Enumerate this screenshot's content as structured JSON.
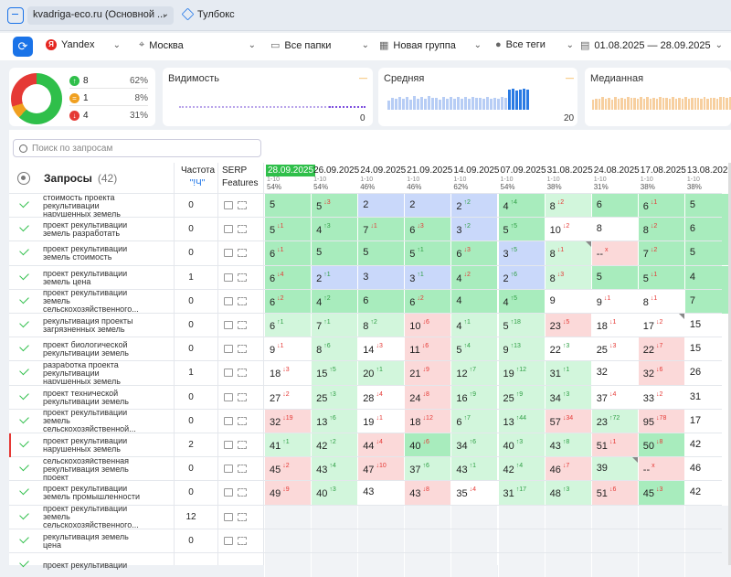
{
  "topbar": {
    "project": "kvadriga-eco.ru (Основной ...",
    "toolbox": "Тулбокс"
  },
  "filters": {
    "engine": "Yandex",
    "region": "Москва",
    "folders": "Все папки",
    "group": "Новая группа",
    "tags": "Все теги",
    "dates": "01.08.2025 — 28.09.2025"
  },
  "summary": {
    "up": {
      "value": "8",
      "pct": "62%"
    },
    "same": {
      "value": "1",
      "pct": "8%"
    },
    "down": {
      "value": "4",
      "pct": "31%"
    }
  },
  "metrics": {
    "visibility": {
      "title": "Видимость",
      "value": "0",
      "dash": "—"
    },
    "average": {
      "title": "Средняя",
      "value": "20",
      "dash": "—",
      "bars": [
        40,
        55,
        48,
        60,
        52,
        58,
        45,
        62,
        50,
        57,
        49,
        61,
        53,
        56,
        47,
        60,
        52,
        58,
        51,
        59,
        50,
        57,
        48,
        60,
        54,
        56,
        49,
        58,
        52,
        55,
        50,
        57,
        53,
        90,
        95,
        88,
        92,
        94,
        90
      ]
    },
    "median": {
      "title": "Медианная",
      "dash": "—",
      "bars": [
        45,
        52,
        48,
        58,
        50,
        55,
        47,
        60,
        51,
        56,
        49,
        59,
        53,
        55,
        48,
        57,
        52,
        58,
        50,
        56,
        49,
        57,
        54,
        55,
        50,
        58,
        52,
        56,
        49,
        57,
        51,
        55,
        53,
        56,
        48,
        58,
        52,
        54,
        55,
        50,
        60,
        58,
        55,
        57
      ]
    }
  },
  "search": {
    "placeholder": "Поиск по запросам"
  },
  "table": {
    "header": {
      "queries": "Запросы",
      "count": "(42)",
      "freq": "Частота",
      "freq_q": "\"!Ч\"",
      "serp1": "SERP",
      "serp2": "Features"
    },
    "dates": [
      {
        "d": "28.09.2025",
        "r": "1-10",
        "p": "54%"
      },
      {
        "d": "26.09.2025",
        "r": "1-10",
        "p": "54%"
      },
      {
        "d": "24.09.2025",
        "r": "1-10",
        "p": "46%"
      },
      {
        "d": "21.09.2025",
        "r": "1-10",
        "p": "46%"
      },
      {
        "d": "14.09.2025",
        "r": "1-10",
        "p": "62%"
      },
      {
        "d": "07.09.2025",
        "r": "1-10",
        "p": "54%"
      },
      {
        "d": "31.08.2025",
        "r": "1-10",
        "p": "38%"
      },
      {
        "d": "24.08.2025",
        "r": "1-10",
        "p": "31%"
      },
      {
        "d": "17.08.2025",
        "r": "1-10",
        "p": "38%"
      },
      {
        "d": "13.08.2025",
        "r": "1-10",
        "p": "38%"
      }
    ],
    "rows": [
      {
        "q": "стоимость проекта рекультивации нарушенных земель",
        "f": "0",
        "c": [
          [
            "5",
            "",
            ""
          ],
          [
            "5",
            "3",
            "dn"
          ],
          [
            "2",
            "",
            ""
          ],
          [
            "2",
            "",
            ""
          ],
          [
            "2",
            "2",
            "up"
          ],
          [
            "4",
            "4",
            "up"
          ],
          [
            "8",
            "2",
            "dn"
          ],
          [
            "6",
            "",
            ""
          ],
          [
            "6",
            "1",
            "dn"
          ],
          [
            "5",
            "",
            ""
          ]
        ]
      },
      {
        "q": "проект рекультивации земель разработать",
        "f": "0",
        "c": [
          [
            "5",
            "1",
            "dn"
          ],
          [
            "4",
            "3",
            "up"
          ],
          [
            "7",
            "1",
            "dn"
          ],
          [
            "6",
            "3",
            "dn"
          ],
          [
            "3",
            "2",
            "up"
          ],
          [
            "5",
            "5",
            "up"
          ],
          [
            "10",
            "2",
            "dn"
          ],
          [
            "8",
            "",
            ""
          ],
          [
            "8",
            "2",
            "dn"
          ],
          [
            "6",
            "",
            ""
          ]
        ]
      },
      {
        "q": "проект рекультивации земель стоимость",
        "f": "0",
        "c": [
          [
            "6",
            "1",
            "dn"
          ],
          [
            "5",
            "",
            ""
          ],
          [
            "5",
            "",
            ""
          ],
          [
            "5",
            "1",
            "up"
          ],
          [
            "6",
            "3",
            "dn"
          ],
          [
            "3",
            "5",
            "up"
          ],
          [
            "8",
            "1",
            "dn"
          ],
          [
            "--",
            "x",
            "dn"
          ],
          [
            "7",
            "2",
            "dn"
          ],
          [
            "5",
            "",
            ""
          ]
        ]
      },
      {
        "q": "проект рекультивации земель цена",
        "f": "1",
        "c": [
          [
            "6",
            "4",
            "dn"
          ],
          [
            "2",
            "1",
            "up"
          ],
          [
            "3",
            "",
            ""
          ],
          [
            "3",
            "1",
            "up"
          ],
          [
            "4",
            "2",
            "dn"
          ],
          [
            "2",
            "6",
            "up"
          ],
          [
            "8",
            "3",
            "dn"
          ],
          [
            "5",
            "",
            ""
          ],
          [
            "5",
            "1",
            "dn"
          ],
          [
            "4",
            "",
            ""
          ]
        ]
      },
      {
        "q": "проект рекультивации земель сельскохозяйственного...",
        "f": "0",
        "c": [
          [
            "6",
            "2",
            "dn"
          ],
          [
            "4",
            "2",
            "up"
          ],
          [
            "6",
            "",
            ""
          ],
          [
            "6",
            "2",
            "dn"
          ],
          [
            "4",
            "",
            ""
          ],
          [
            "4",
            "5",
            "up"
          ],
          [
            "9",
            "",
            ""
          ],
          [
            "9",
            "1",
            "dn"
          ],
          [
            "8",
            "1",
            "dn"
          ],
          [
            "7",
            "",
            ""
          ]
        ]
      },
      {
        "q": "рекультивация проекты загрязненных земель",
        "f": "0",
        "c": [
          [
            "6",
            "1",
            "up"
          ],
          [
            "7",
            "1",
            "up"
          ],
          [
            "8",
            "2",
            "up"
          ],
          [
            "10",
            "6",
            "dn"
          ],
          [
            "4",
            "1",
            "up"
          ],
          [
            "5",
            "18",
            "up"
          ],
          [
            "23",
            "5",
            "dn"
          ],
          [
            "18",
            "1",
            "dn"
          ],
          [
            "17",
            "2",
            "dn"
          ],
          [
            "15",
            "",
            ""
          ]
        ]
      },
      {
        "q": "проект биологической рекультивации земель",
        "f": "0",
        "c": [
          [
            "9",
            "1",
            "dn"
          ],
          [
            "8",
            "6",
            "up"
          ],
          [
            "14",
            "3",
            "dn"
          ],
          [
            "11",
            "6",
            "dn"
          ],
          [
            "5",
            "4",
            "up"
          ],
          [
            "9",
            "13",
            "up"
          ],
          [
            "22",
            "3",
            "up"
          ],
          [
            "25",
            "3",
            "dn"
          ],
          [
            "22",
            "7",
            "dn"
          ],
          [
            "15",
            "",
            ""
          ]
        ]
      },
      {
        "q": "разработка проекта рекультивации нарушенных земель",
        "f": "1",
        "c": [
          [
            "18",
            "3",
            "dn"
          ],
          [
            "15",
            "5",
            "up"
          ],
          [
            "20",
            "1",
            "up"
          ],
          [
            "21",
            "9",
            "dn"
          ],
          [
            "12",
            "7",
            "up"
          ],
          [
            "19",
            "12",
            "up"
          ],
          [
            "31",
            "1",
            "up"
          ],
          [
            "32",
            "",
            ""
          ],
          [
            "32",
            "6",
            "dn"
          ],
          [
            "26",
            "",
            ""
          ]
        ]
      },
      {
        "q": "проект технической рекультивации земель",
        "f": "0",
        "c": [
          [
            "27",
            "2",
            "dn"
          ],
          [
            "25",
            "3",
            "up"
          ],
          [
            "28",
            "4",
            "dn"
          ],
          [
            "24",
            "8",
            "dn"
          ],
          [
            "16",
            "9",
            "up"
          ],
          [
            "25",
            "9",
            "up"
          ],
          [
            "34",
            "3",
            "up"
          ],
          [
            "37",
            "4",
            "dn"
          ],
          [
            "33",
            "2",
            "dn"
          ],
          [
            "31",
            "",
            ""
          ]
        ]
      },
      {
        "q": "проект рекультивации земель сельскохозяйственной...",
        "f": "0",
        "c": [
          [
            "32",
            "19",
            "dn"
          ],
          [
            "13",
            "6",
            "up"
          ],
          [
            "19",
            "1",
            "dn"
          ],
          [
            "18",
            "12",
            "dn"
          ],
          [
            "6",
            "7",
            "up"
          ],
          [
            "13",
            "44",
            "up"
          ],
          [
            "57",
            "34",
            "dn"
          ],
          [
            "23",
            "72",
            "up"
          ],
          [
            "95",
            "78",
            "dn"
          ],
          [
            "17",
            "",
            ""
          ]
        ]
      },
      {
        "q": "проект рекультивации нарушенных земель",
        "f": "2",
        "c": [
          [
            "41",
            "1",
            "up"
          ],
          [
            "42",
            "2",
            "up"
          ],
          [
            "44",
            "4",
            "dn"
          ],
          [
            "40",
            "6",
            "dn"
          ],
          [
            "34",
            "6",
            "up"
          ],
          [
            "40",
            "3",
            "up"
          ],
          [
            "43",
            "8",
            "up"
          ],
          [
            "51",
            "1",
            "dn"
          ],
          [
            "50",
            "8",
            "dn"
          ],
          [
            "42",
            "",
            ""
          ]
        ]
      },
      {
        "q": "сельскохозяйственная рекультивация земель проект",
        "f": "0",
        "c": [
          [
            "45",
            "2",
            "dn"
          ],
          [
            "43",
            "4",
            "up"
          ],
          [
            "47",
            "10",
            "dn"
          ],
          [
            "37",
            "6",
            "up"
          ],
          [
            "43",
            "1",
            "up"
          ],
          [
            "42",
            "4",
            "up"
          ],
          [
            "46",
            "7",
            "dn"
          ],
          [
            "39",
            "",
            ""
          ],
          [
            "--",
            "x",
            "dn"
          ],
          [
            "46",
            "",
            ""
          ]
        ]
      },
      {
        "q": "проект рекультивации земель промышленности",
        "f": "0",
        "c": [
          [
            "49",
            "9",
            "dn"
          ],
          [
            "40",
            "3",
            "up"
          ],
          [
            "43",
            "",
            ""
          ],
          [
            "43",
            "8",
            "dn"
          ],
          [
            "35",
            "4",
            "dn"
          ],
          [
            "31",
            "17",
            "up"
          ],
          [
            "48",
            "3",
            "up"
          ],
          [
            "51",
            "6",
            "dn"
          ],
          [
            "45",
            "3",
            "dn"
          ],
          [
            "42",
            "",
            ""
          ]
        ]
      },
      {
        "q": "проект рекультивации земель сельскохозяйственного...",
        "f": "12",
        "c": []
      },
      {
        "q": "рекультивация земель цена",
        "f": "0",
        "c": []
      },
      {
        "q": "проект рекультивации",
        "f": "",
        "c": []
      }
    ]
  },
  "colors": {
    "green": "#a8ecbd",
    "lgreen": "#d2f6dc",
    "blue": "#c9d8fa",
    "red": "#fbd9d9",
    "accent": "#1a73e8"
  }
}
